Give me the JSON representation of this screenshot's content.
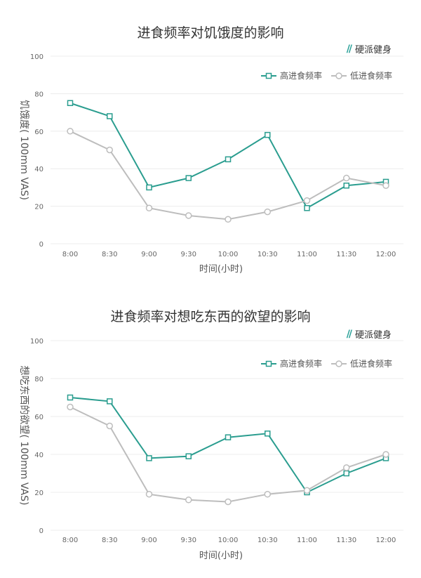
{
  "charts": [
    {
      "title": "进食频率对饥饿度的影响",
      "brand": "硬派健身",
      "chart_data": {
        "type": "line",
        "categories": [
          "8:00",
          "8:30",
          "9:00",
          "9:30",
          "10:00",
          "10:30",
          "11:00",
          "11:30",
          "12:00"
        ],
        "series": [
          {
            "name": "高进食频率",
            "color": "#2a9d8f",
            "marker": "square",
            "values": [
              75,
              68,
              30,
              35,
              45,
              58,
              19,
              31,
              33
            ]
          },
          {
            "name": "低进食频率",
            "color": "#bdbdbd",
            "marker": "circle",
            "values": [
              60,
              50,
              19,
              15,
              13,
              17,
              23,
              35,
              31
            ]
          }
        ],
        "title": "进食频率对饥饿度的影响",
        "xlabel": "时间(小时)",
        "ylabel": "饥饿度( 100mm VAS)",
        "ylim": [
          0,
          100
        ],
        "yticks": [
          0,
          20,
          40,
          60,
          80,
          100
        ],
        "grid": true,
        "legend": "top-right"
      }
    },
    {
      "title": "进食频率对想吃东西的欲望的影响",
      "brand": "硬派健身",
      "chart_data": {
        "type": "line",
        "categories": [
          "8:00",
          "8:30",
          "9:00",
          "9:30",
          "10:00",
          "10:30",
          "11:00",
          "11:30",
          "12:00"
        ],
        "series": [
          {
            "name": "高进食频率",
            "color": "#2a9d8f",
            "marker": "square",
            "values": [
              70,
              68,
              38,
              39,
              49,
              51,
              20,
              30,
              38
            ]
          },
          {
            "name": "低进食频率",
            "color": "#bdbdbd",
            "marker": "circle",
            "values": [
              65,
              55,
              19,
              16,
              15,
              19,
              21,
              33,
              40
            ]
          }
        ],
        "title": "进食频率对想吃东西的欲望的影响",
        "xlabel": "时间(小时)",
        "ylabel": "想吃东西的欲望( 100mm VAS)",
        "ylim": [
          0,
          100
        ],
        "yticks": [
          0,
          20,
          40,
          60,
          80,
          100
        ],
        "grid": true,
        "legend": "top-right"
      }
    }
  ]
}
